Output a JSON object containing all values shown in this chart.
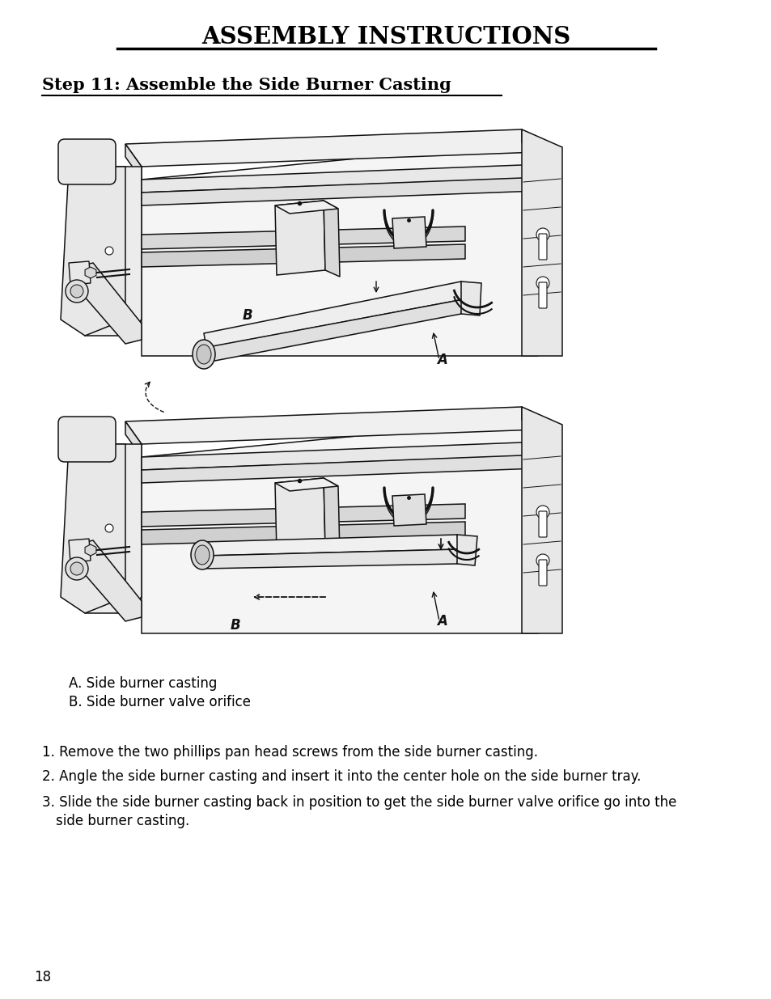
{
  "title": "ASSEMBLY INSTRUCTIONS",
  "step_title": "Step 11: Assemble the Side Burner Casting",
  "legend_a": "A. Side burner casting",
  "legend_b": "B. Side burner valve orifice",
  "step1": "1. Remove the two phillips pan head screws from the side burner casting.",
  "step2": "2. Angle the side burner casting and insert it into the center hole on the side burner tray.",
  "step3": "3. Slide the side burner casting back in position to get the side burner valve orifice go into the\n   side burner casting.",
  "page_num": "18",
  "bg_color": "#ffffff",
  "text_color": "#000000",
  "fig_width": 9.54,
  "fig_height": 12.35
}
